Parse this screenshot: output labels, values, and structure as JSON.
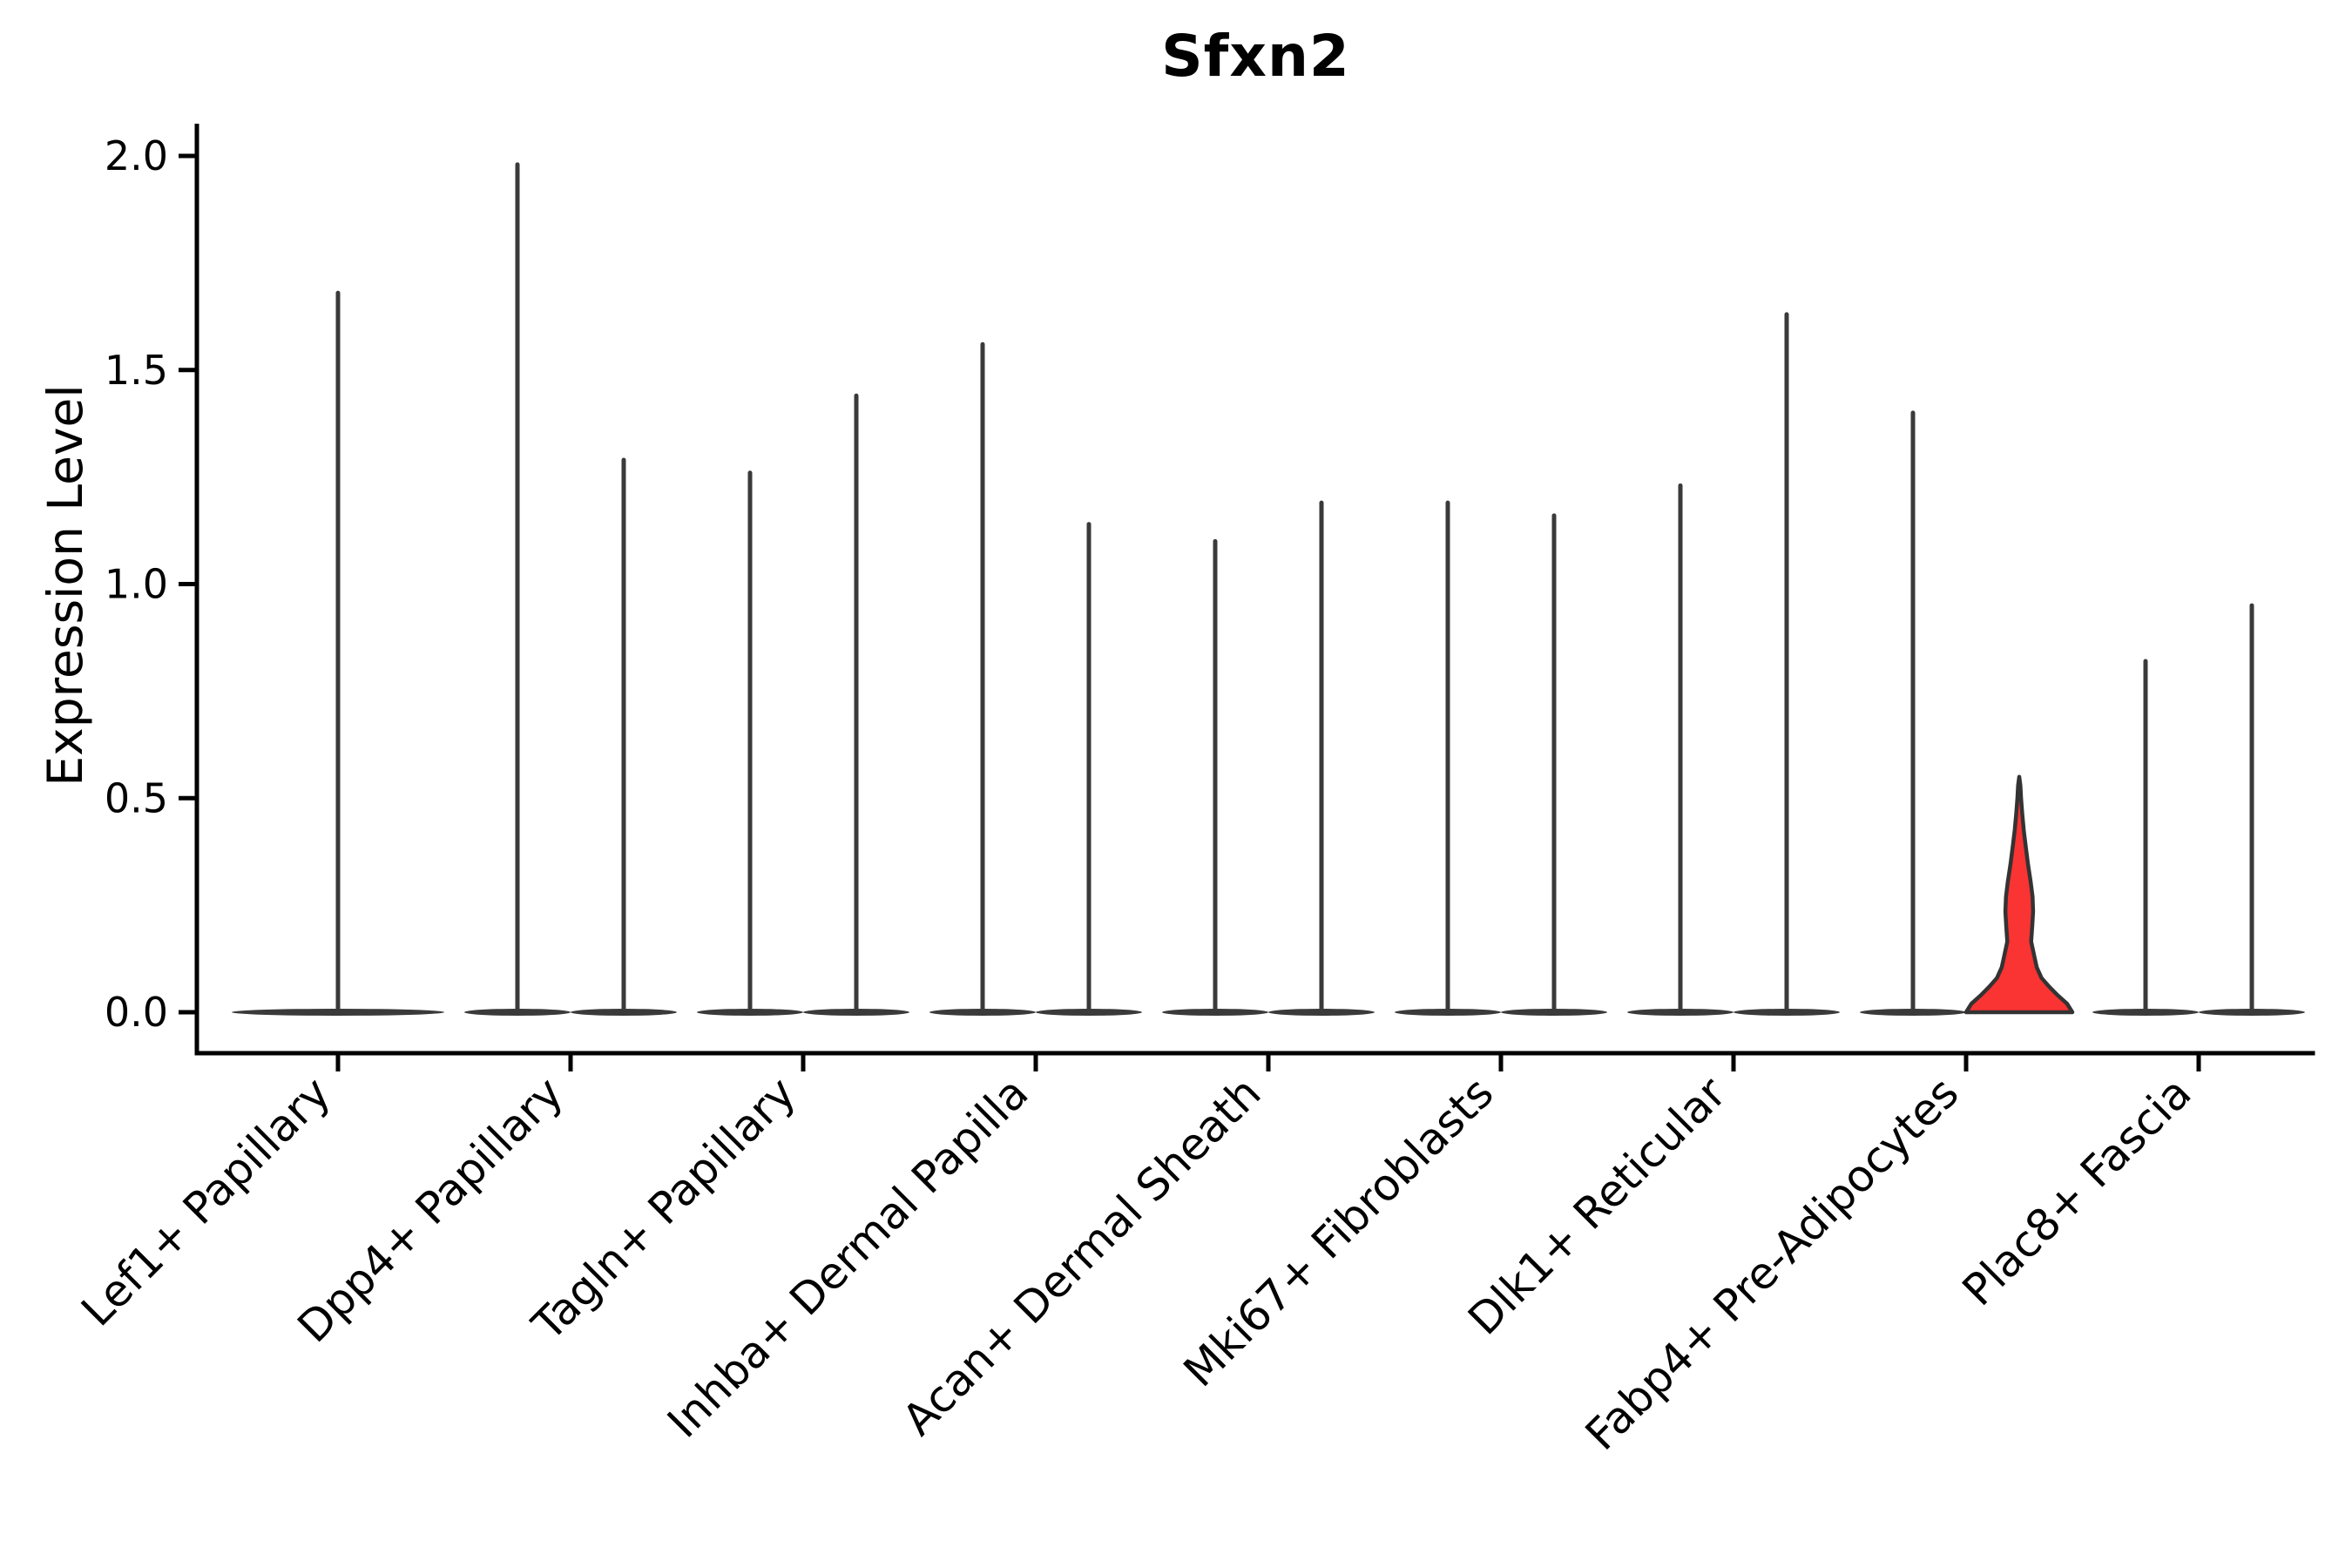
{
  "title": "Sfxn2",
  "y_axis": {
    "label": "Expression Level",
    "tick_labels": [
      "0.0",
      "0.5",
      "1.0",
      "1.5",
      "2.0"
    ],
    "tick_values": [
      0,
      0.5,
      1.0,
      1.5,
      2.0
    ]
  },
  "chart_data": {
    "type": "violin",
    "title": "Sfxn2",
    "xlabel": "",
    "ylabel": "Expression Level",
    "ylim": [
      -0.1,
      2.08
    ],
    "yticks": [
      0,
      0.5,
      1.0,
      1.5,
      2.0
    ],
    "grid": false,
    "legend": "none",
    "colors": {
      "violin": "#3A3A3A",
      "highlight_fill": "#FA3333",
      "highlight_stroke": "#333333",
      "axis": "#000000",
      "background": "#FFFFFF"
    },
    "categories": [
      {
        "label": "Lef1+ Papillary",
        "violins": [
          {
            "position": "center",
            "max_expression": 1.68
          }
        ]
      },
      {
        "label": "Dpp4+ Papillary",
        "violins": [
          {
            "position": "left",
            "max_expression": 1.98
          },
          {
            "position": "right",
            "max_expression": 1.29
          }
        ]
      },
      {
        "label": "Tagln+ Papillary",
        "violins": [
          {
            "position": "left",
            "max_expression": 1.26
          },
          {
            "position": "right",
            "max_expression": 1.44
          }
        ]
      },
      {
        "label": "Inhba+ Dermal Papilla",
        "violins": [
          {
            "position": "left",
            "max_expression": 1.56
          },
          {
            "position": "right",
            "max_expression": 1.14
          }
        ]
      },
      {
        "label": "Acan+ Dermal Sheath",
        "violins": [
          {
            "position": "left",
            "max_expression": 1.1
          },
          {
            "position": "right",
            "max_expression": 1.19
          }
        ]
      },
      {
        "label": "Mki67+ Fibroblasts",
        "violins": [
          {
            "position": "left",
            "max_expression": 1.19
          },
          {
            "position": "right",
            "max_expression": 1.16
          }
        ]
      },
      {
        "label": "Dlk1+ Reticular",
        "violins": [
          {
            "position": "left",
            "max_expression": 1.23
          },
          {
            "position": "right",
            "max_expression": 1.63
          }
        ]
      },
      {
        "label": "Fabp4+ Pre-Adipocytes",
        "violins": [
          {
            "position": "left",
            "max_expression": 1.4
          },
          {
            "position": "right",
            "max_expression": 0.55,
            "highlighted": true,
            "width_profile": [
              [
                0.0,
                1.0
              ],
              [
                0.02,
                0.9
              ],
              [
                0.04,
                0.72
              ],
              [
                0.06,
                0.56
              ],
              [
                0.08,
                0.42
              ],
              [
                0.105,
                0.33
              ],
              [
                0.13,
                0.285
              ],
              [
                0.165,
                0.225
              ],
              [
                0.2,
                0.245
              ],
              [
                0.235,
                0.26
              ],
              [
                0.27,
                0.25
              ],
              [
                0.305,
                0.215
              ],
              [
                0.345,
                0.165
              ],
              [
                0.385,
                0.125
              ],
              [
                0.425,
                0.085
              ],
              [
                0.465,
                0.055
              ],
              [
                0.5,
                0.035
              ],
              [
                0.53,
                0.022
              ],
              [
                0.55,
                0.0
              ]
            ]
          }
        ]
      },
      {
        "label": "Plac8+ Fascia",
        "violins": [
          {
            "position": "left",
            "max_expression": 0.82
          },
          {
            "position": "right",
            "max_expression": 0.95
          }
        ]
      }
    ]
  }
}
